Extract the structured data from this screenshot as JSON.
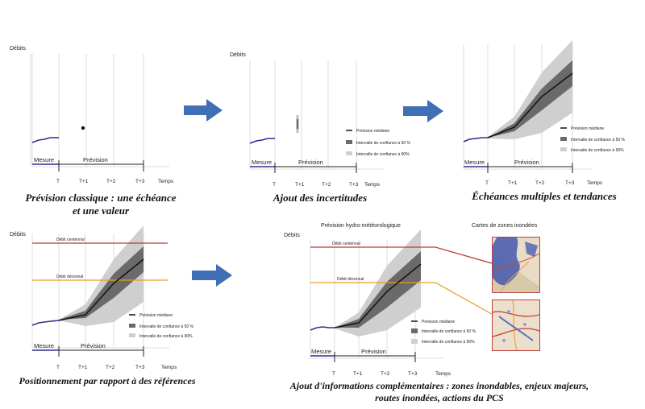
{
  "common": {
    "y_label": "Débits",
    "x_label": "Temps",
    "ticks": [
      "T",
      "T+1",
      "T+2",
      "T+3"
    ],
    "measure_label": "Mesure",
    "forecast_label": "Prévision",
    "legend": {
      "median": "Prévision  médiane",
      "ci50": "Intervalle de confiance à 50 %",
      "ci90": "Intervalle de confiance à 90%"
    },
    "ref_centennial": "Débit centennal",
    "ref_decennial": "Débit décennal"
  },
  "captions": {
    "p1": [
      "Prévision classique : une échéance",
      "et une valeur"
    ],
    "p2": "Ajout des incertitudes",
    "p3": "Échéances multiples et tendances",
    "p4": "Positionnement par rapport à des références",
    "p5": [
      "Ajout d'informations complémentaires : zones inondables, enjeux majeurs,",
      "routes inondées, actions du PCS"
    ]
  },
  "panel5": {
    "title": "Prévision hydro-météorologique",
    "maps_title": "Cartes de zones inondées"
  },
  "colors": {
    "measure": "#2b2f8f",
    "median": "#111111",
    "ci50": "#6a6a6a",
    "ci90": "#cfcfcf",
    "centennial": "#c0392b",
    "decennial": "#e0a020",
    "arrow": "#3f6fb5"
  }
}
